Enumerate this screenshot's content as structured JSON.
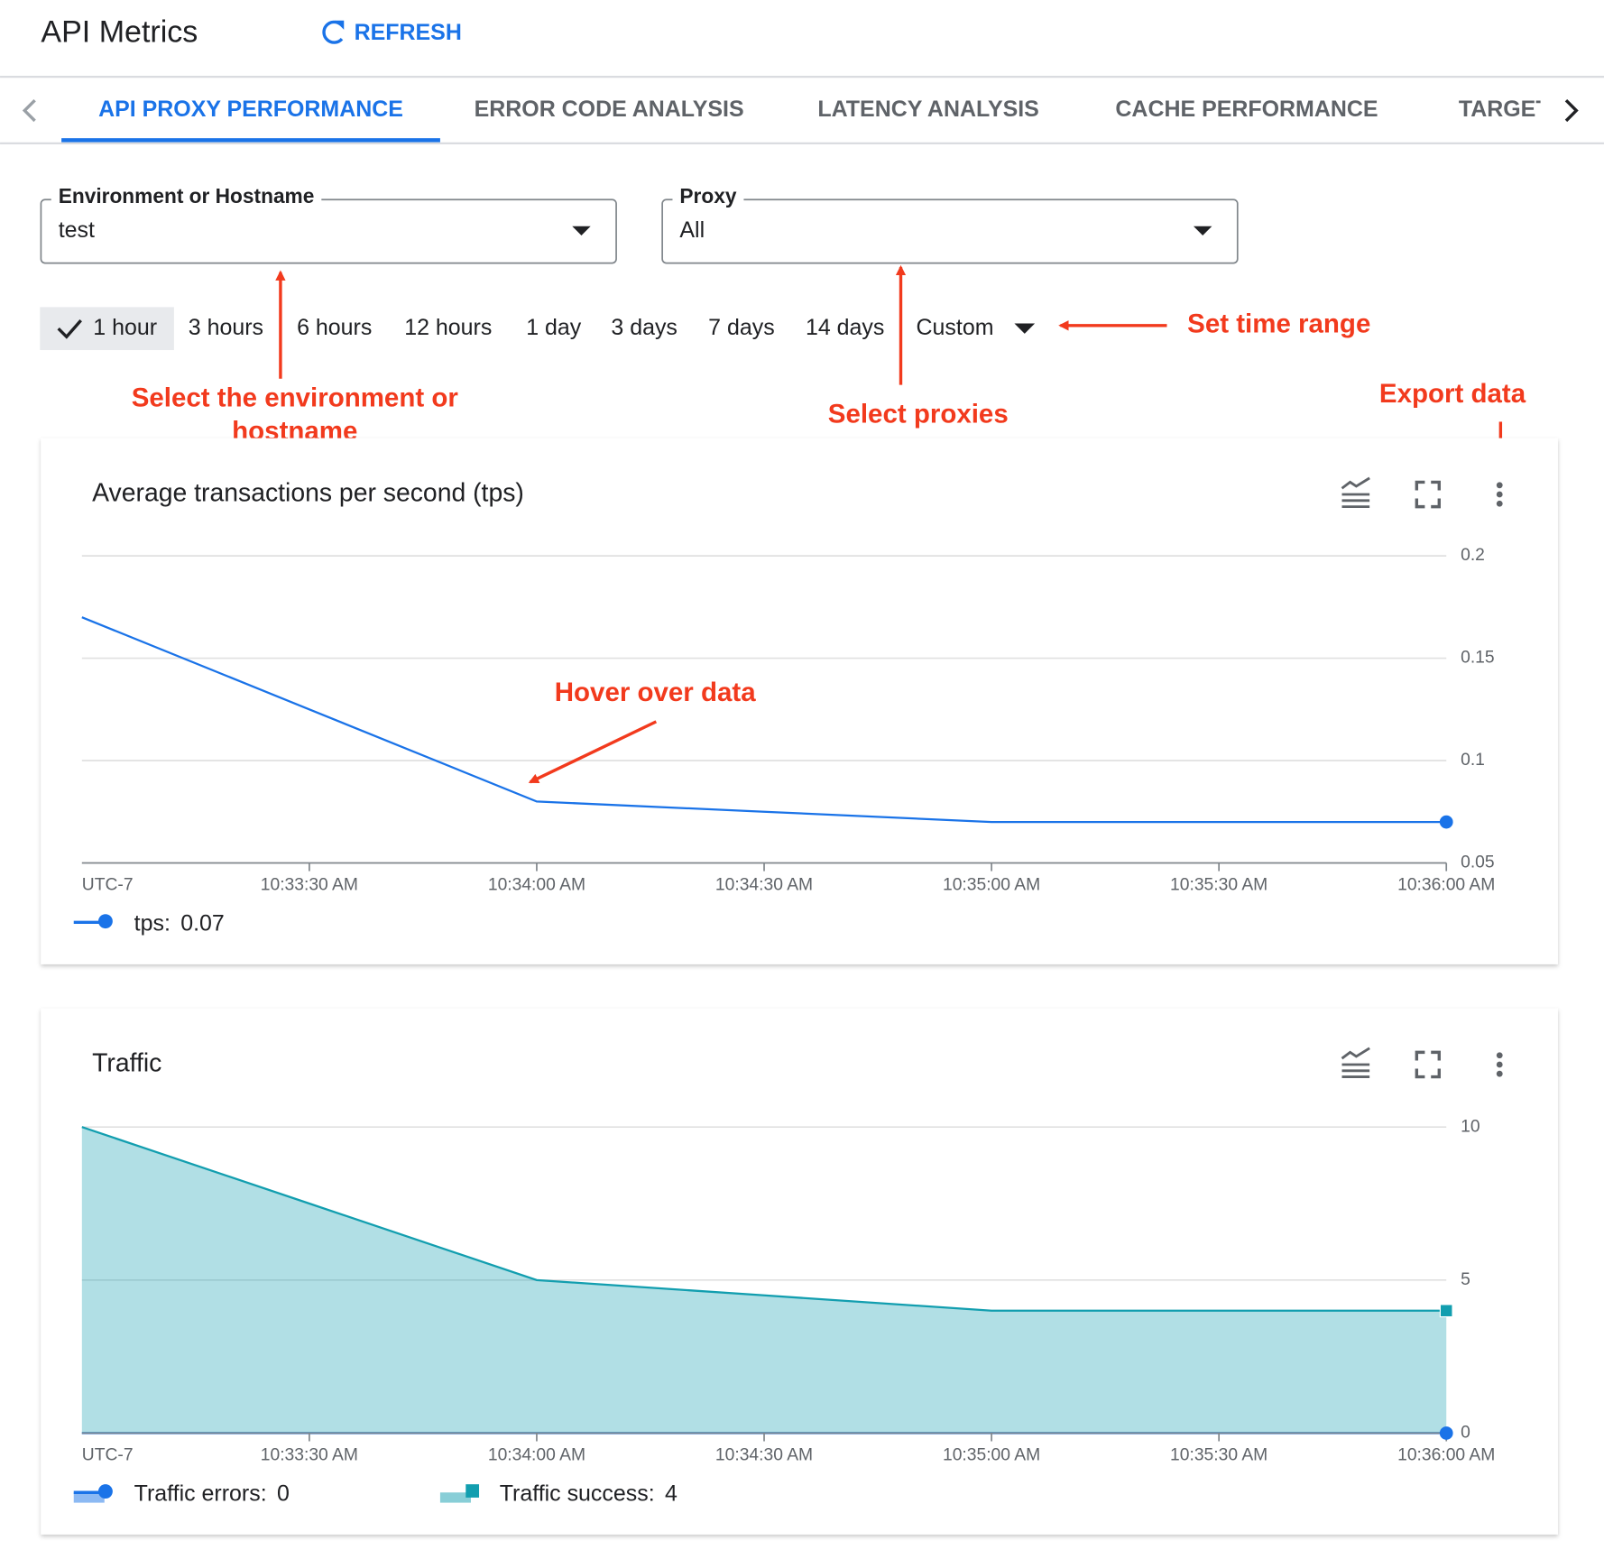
{
  "header": {
    "title": "API Metrics",
    "refresh": "REFRESH"
  },
  "tabs": {
    "items": [
      "API PROXY PERFORMANCE",
      "ERROR CODE ANALYSIS",
      "LATENCY ANALYSIS",
      "CACHE PERFORMANCE",
      "TARGET"
    ],
    "active": 0
  },
  "filters": [
    {
      "label": "Environment or Hostname",
      "value": "test"
    },
    {
      "label": "Proxy",
      "value": "All"
    }
  ],
  "time_ranges": {
    "items": [
      "1 hour",
      "3 hours",
      "6 hours",
      "12 hours",
      "1 day",
      "3 days",
      "7 days",
      "14 days",
      "Custom"
    ],
    "selected": 0
  },
  "annotations": {
    "environment": [
      "Select the environment or",
      "hostname"
    ],
    "proxies": "Select proxies",
    "time_range": "Set time range",
    "export": "Export data",
    "hover": "Hover over data"
  },
  "chart_data": [
    {
      "type": "line",
      "title": "Average transactions per second (tps)",
      "categories": [
        "UTC-7",
        "10:33:30 AM",
        "10:34:00 AM",
        "10:34:30 AM",
        "10:35:00 AM",
        "10:35:30 AM",
        "10:36:00 AM"
      ],
      "series": [
        {
          "name": "tps:",
          "color": "#1a73e8",
          "values": [
            0.17,
            0.125,
            0.08,
            0.075,
            0.07,
            0.07,
            0.07
          ]
        }
      ],
      "ylim": [
        0.05,
        0.2
      ],
      "yticks": [
        0.05,
        0.1,
        0.15,
        0.2
      ],
      "grid": true
    },
    {
      "type": "area",
      "title": "Traffic",
      "categories": [
        "UTC-7",
        "10:33:30 AM",
        "10:34:00 AM",
        "10:34:30 AM",
        "10:35:00 AM",
        "10:35:30 AM",
        "10:36:00 AM"
      ],
      "series": [
        {
          "name": "Traffic errors:",
          "color": "#1a73e8",
          "values": [
            0,
            0,
            0,
            0,
            0,
            0,
            0
          ]
        },
        {
          "name": "Traffic success:",
          "color": "#129eaf",
          "values": [
            10,
            7.5,
            5,
            4.5,
            4,
            4,
            4
          ]
        }
      ],
      "ylim": [
        0,
        10
      ],
      "yticks": [
        0,
        5,
        10
      ],
      "grid": true
    }
  ]
}
